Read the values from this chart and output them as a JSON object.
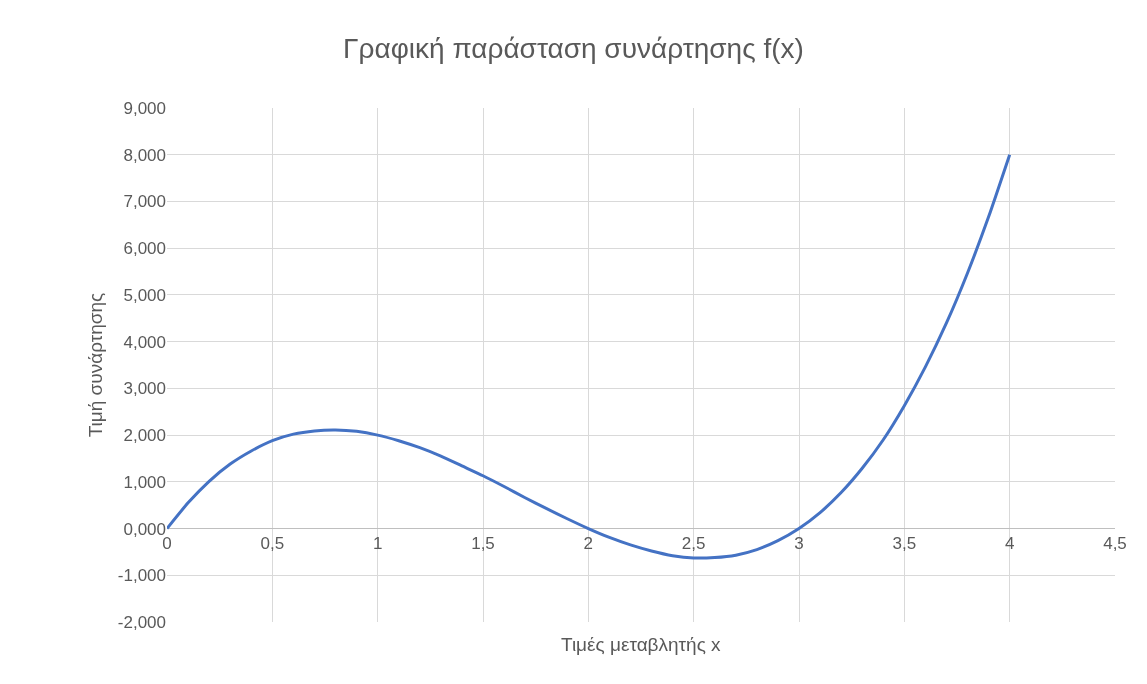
{
  "chart_data": {
    "type": "line",
    "title": "Γραφική παράσταση συνάρτησης f(x)",
    "xlabel": "Τιμές μεταβλητής x",
    "ylabel": "Τιμή συνάρτησης",
    "series": [
      {
        "color": "#4472c4",
        "x": [
          0,
          0.1,
          0.2,
          0.3,
          0.4,
          0.5,
          0.6,
          0.7,
          0.8,
          0.9,
          1,
          1.1,
          1.2,
          1.3,
          1.4,
          1.5,
          1.6,
          1.7,
          1.8,
          1.9,
          2,
          2.1,
          2.2,
          2.3,
          2.4,
          2.5,
          2.6,
          2.7,
          2.8,
          2.9,
          3,
          3.1,
          3.2,
          3.3,
          3.4,
          3.5,
          3.6,
          3.7,
          3.8,
          3.9,
          4
        ],
        "values": [
          0,
          0.55,
          1.01,
          1.38,
          1.66,
          1.88,
          2.02,
          2.09,
          2.11,
          2.08,
          2,
          1.88,
          1.73,
          1.55,
          1.34,
          1.13,
          0.9,
          0.66,
          0.43,
          0.21,
          0,
          -0.19,
          -0.35,
          -0.48,
          -0.58,
          -0.63,
          -0.62,
          -0.57,
          -0.45,
          -0.26,
          0,
          0.34,
          0.77,
          1.29,
          1.9,
          2.63,
          3.46,
          4.4,
          5.47,
          6.67,
          8
        ]
      }
    ],
    "xlim": [
      0,
      4.5
    ],
    "ylim": [
      -2,
      9
    ],
    "xticks": [
      0,
      {
        "value": 0.5,
        "label": "0,5"
      },
      1,
      {
        "value": 1.5,
        "label": "1,5"
      },
      2,
      {
        "value": 2.5,
        "label": "2,5"
      },
      3,
      {
        "value": 3.5,
        "label": "3,5"
      },
      4,
      {
        "value": 4.5,
        "label": "4,5"
      }
    ],
    "yticks": [
      {
        "value": -2,
        "label": "-2,000"
      },
      {
        "value": -1,
        "label": "-1,000"
      },
      {
        "value": 0,
        "label": "0,000"
      },
      {
        "value": 1,
        "label": "1,000"
      },
      {
        "value": 2,
        "label": "2,000"
      },
      {
        "value": 3,
        "label": "3,000"
      },
      {
        "value": 4,
        "label": "4,000"
      },
      {
        "value": 5,
        "label": "5,000"
      },
      {
        "value": 6,
        "label": "6,000"
      },
      {
        "value": 7,
        "label": "7,000"
      },
      {
        "value": 8,
        "label": "8,000"
      },
      {
        "value": 9,
        "label": "9,000"
      }
    ],
    "grid": true,
    "marker": "none",
    "line_style": "solid"
  }
}
